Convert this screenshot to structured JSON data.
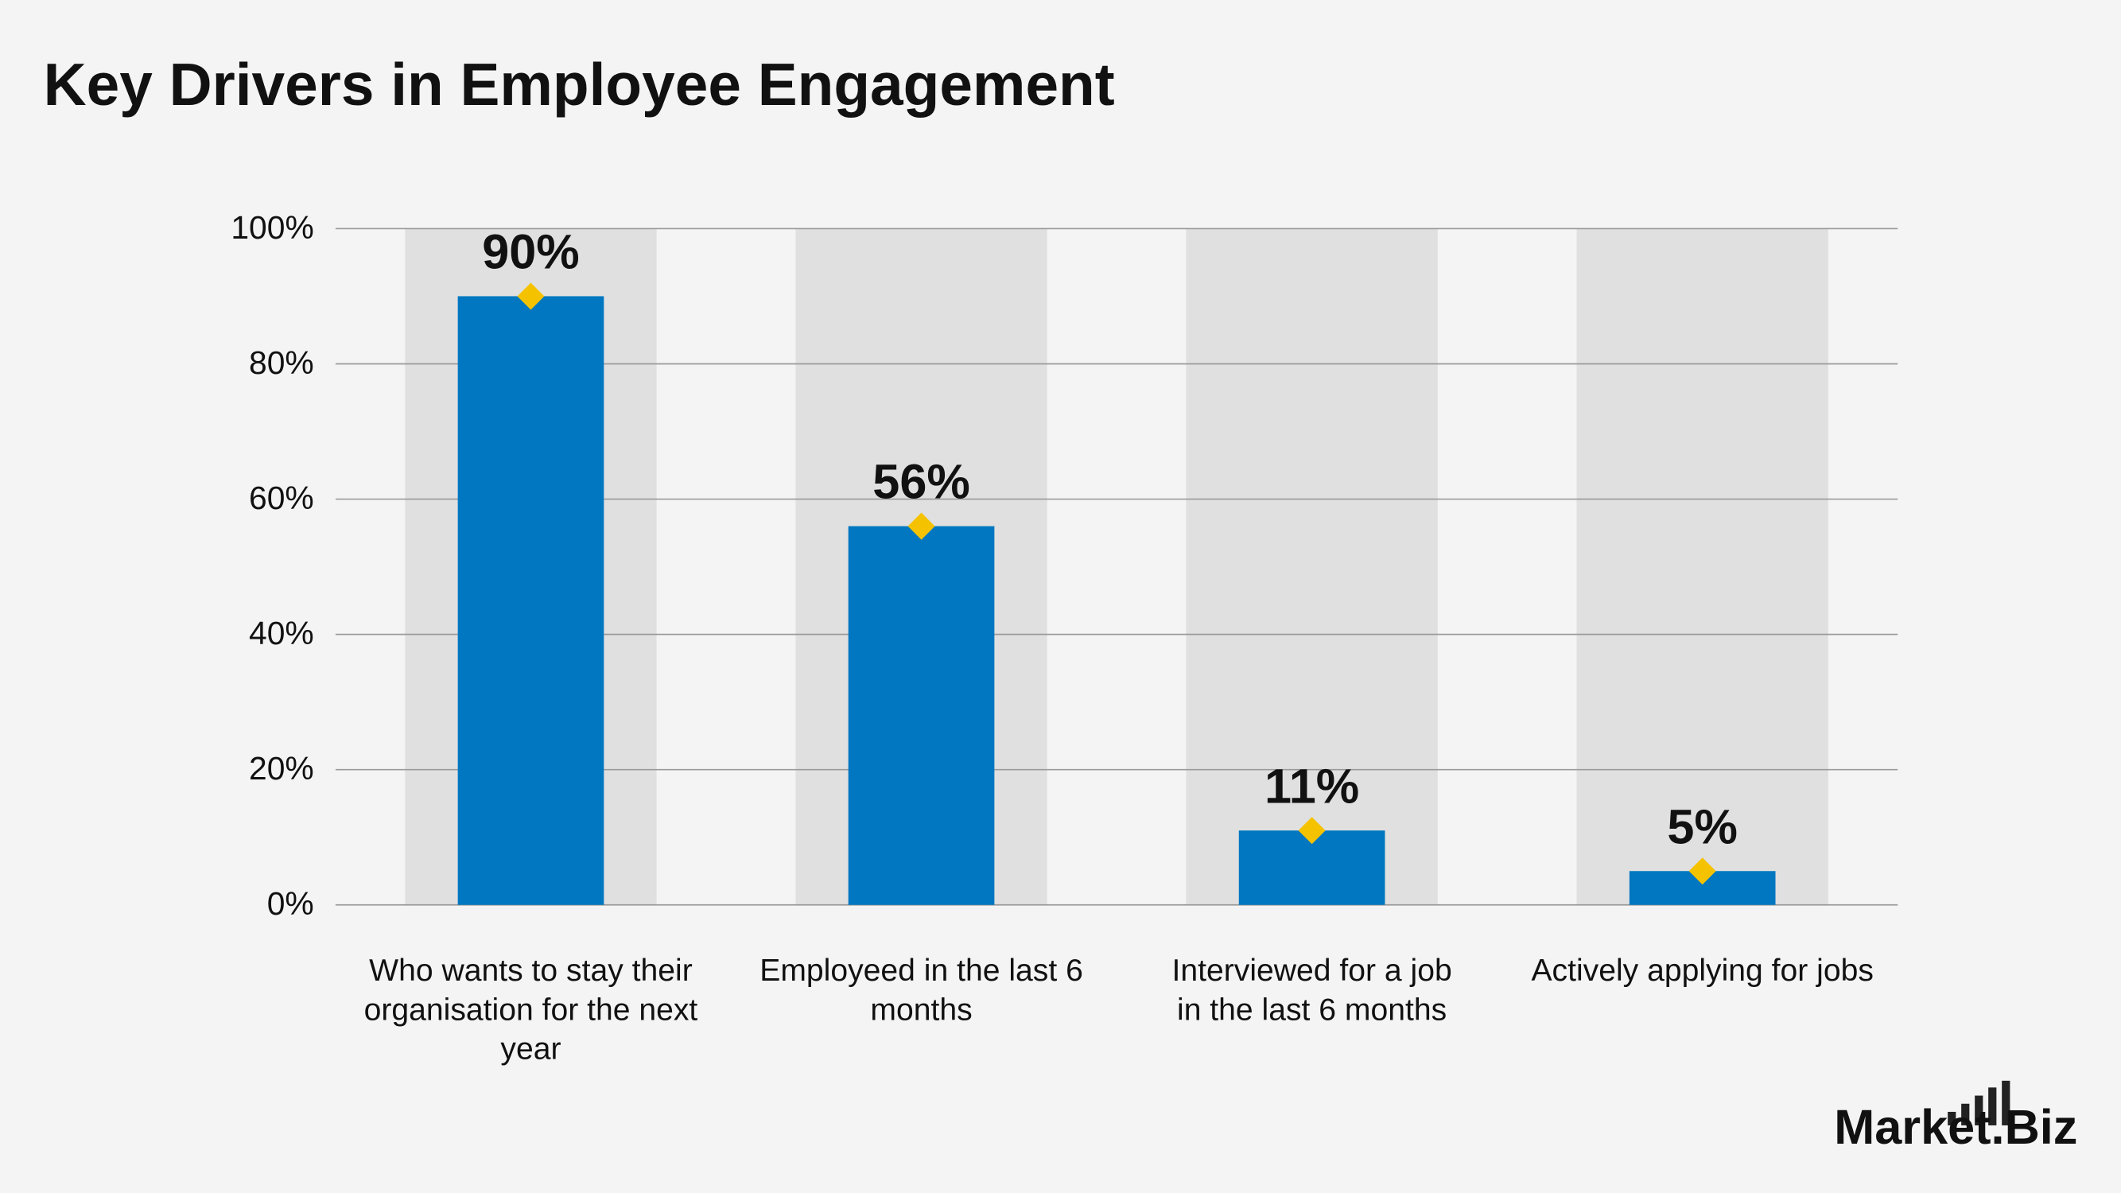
{
  "chart_data": {
    "type": "bar",
    "title": "Key Drivers in Employee Engagement",
    "categories": [
      "Who wants to stay their organisation for the next year",
      "Employeed in the last 6 months",
      "Interviewed for a job in the last 6 months",
      "Actively applying for jobs"
    ],
    "values": [
      90,
      56,
      11,
      5
    ],
    "value_labels": [
      "90%",
      "56%",
      "11%",
      "5%"
    ],
    "color": "#0077c0",
    "ylim": [
      0,
      100
    ],
    "yticks": [
      {
        "value": 0,
        "label": "0%"
      },
      {
        "value": 20,
        "label": "20%"
      },
      {
        "value": 40,
        "label": "40%"
      },
      {
        "value": 60,
        "label": "60%"
      },
      {
        "value": 80,
        "label": "80%"
      },
      {
        "value": 100,
        "label": "100%"
      }
    ],
    "grid": true,
    "brand": "Market.Biz"
  }
}
